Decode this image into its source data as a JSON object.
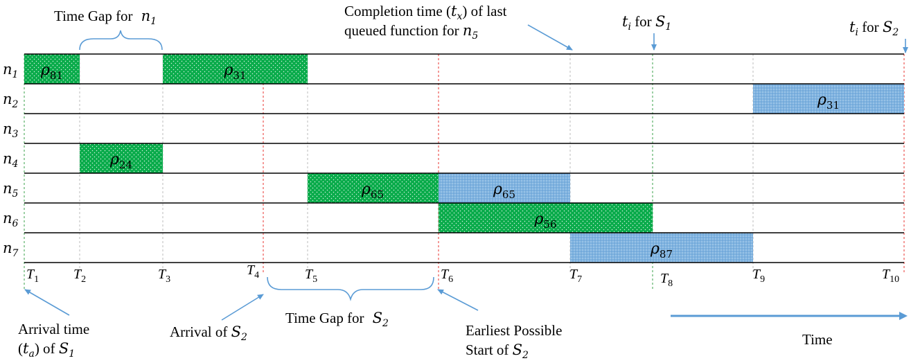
{
  "rows": [
    "n1",
    "n2",
    "n3",
    "n4",
    "n5",
    "n6",
    "n7"
  ],
  "times": [
    "T1",
    "T2",
    "T3",
    "T4",
    "T5",
    "T6",
    "T7",
    "T8",
    "T9",
    "T10"
  ],
  "colors": {
    "green": "#0aab4b",
    "blue": "#7fb3e0",
    "red_line": "#e8332f",
    "green_line": "#3aa04a",
    "gray_line": "#bbbbbb",
    "arrow": "#5a9bd5"
  },
  "blocks": [
    {
      "row": 0,
      "start": 0,
      "end": 1,
      "label": "ρ",
      "sub": "81",
      "color": "green"
    },
    {
      "row": 0,
      "start": 2,
      "end": 4.5,
      "label": "ρ",
      "sub": "31",
      "color": "green"
    },
    {
      "row": 1,
      "start": 8,
      "end": 9.2,
      "label": "ρ",
      "sub": "31",
      "color": "blue"
    },
    {
      "row": 3,
      "start": 1,
      "end": 2,
      "label": "ρ",
      "sub": "24",
      "color": "green"
    },
    {
      "row": 4,
      "start": 4.5,
      "end": 5,
      "label": "ρ",
      "sub": "65",
      "color": "green"
    },
    {
      "row": 4,
      "start": 5,
      "end": 6,
      "label": "ρ",
      "sub": "65",
      "color": "blue"
    },
    {
      "row": 5,
      "start": 5,
      "end": 7,
      "label": "ρ",
      "sub": "56",
      "color": "green"
    },
    {
      "row": 6,
      "start": 6,
      "end": 8,
      "label": "ρ",
      "sub": "87",
      "color": "blue"
    }
  ],
  "annotations": {
    "time_gap_n1": "Time Gap for",
    "time_gap_n1_var": "n1",
    "completion_line1": "Completion time (tx) of last",
    "completion_line2": "queued function for n5",
    "ti_s1": "ti for S1",
    "ti_s2": "ti for S2",
    "arrival_line1": "Arrival time",
    "arrival_line2": "(ta) of S1",
    "arrival_s2": "Arrival of S2",
    "time_gap_s2": "Time Gap for",
    "time_gap_s2_var": "S2",
    "earliest_line1": "Earliest Possible",
    "earliest_line2": "Start of S2",
    "time_axis": "Time"
  }
}
